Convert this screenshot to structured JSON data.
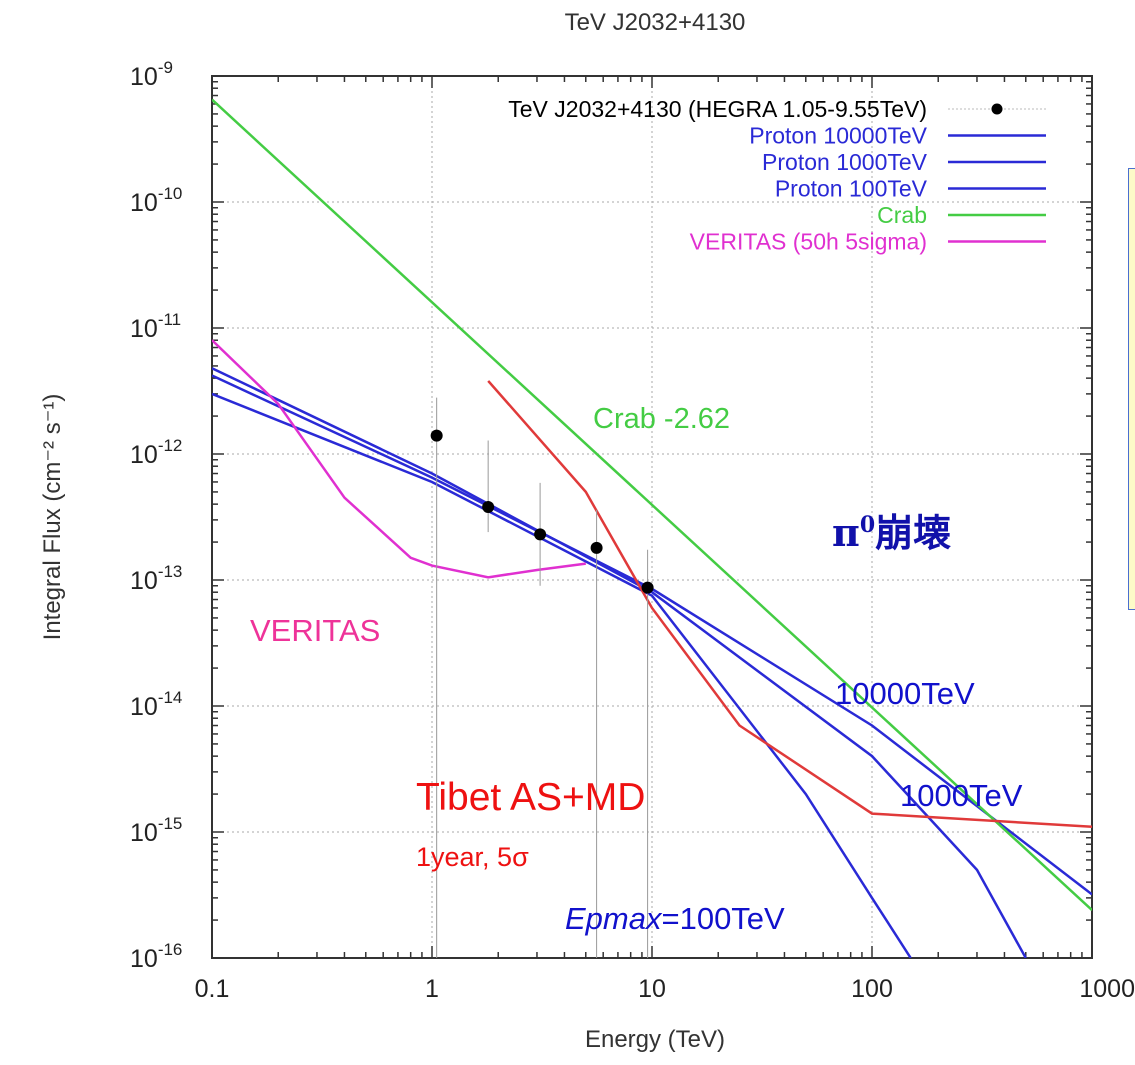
{
  "chart_data": {
    "type": "line",
    "title": "TeV J2032+4130",
    "xlabel": "Energy (TeV)",
    "ylabel": "Integral Flux (cm⁻² s⁻¹)",
    "x_scale": "log",
    "y_scale": "log",
    "xlim": [
      0.1,
      1000
    ],
    "ylim": [
      1e-16,
      1e-09
    ],
    "grid": true,
    "legend_placement": "top-right",
    "x_ticks": [
      "0.1",
      "1",
      "10",
      "100",
      "1000"
    ],
    "y_ticks": [
      {
        "base": "10",
        "exp": "-9"
      },
      {
        "base": "10",
        "exp": "-10"
      },
      {
        "base": "10",
        "exp": "-11"
      },
      {
        "base": "10",
        "exp": "-12"
      },
      {
        "base": "10",
        "exp": "-13"
      },
      {
        "base": "10",
        "exp": "-14"
      },
      {
        "base": "10",
        "exp": "-15"
      },
      {
        "base": "10",
        "exp": "-16"
      }
    ],
    "series": [
      {
        "name": "TeV J2032+4130 (HEGRA 1.05-9.55TeV)",
        "kind": "points",
        "color": "#000000",
        "x": [
          1.05,
          1.8,
          3.1,
          5.6,
          9.55
        ],
        "y": [
          1.4e-12,
          3.8e-13,
          2.3e-13,
          1.8e-13,
          8.7e-14
        ],
        "yerr_low": [
          1.4e-12,
          1.4e-13,
          1.4e-13,
          1.8e-13,
          8.7e-14
        ],
        "yerr_high": [
          1.4e-12,
          9e-13,
          3.6e-13,
          1.8e-13,
          8.7e-14
        ]
      },
      {
        "name": "Proton 10000TeV",
        "kind": "line",
        "color": "#2a2ad6",
        "x": [
          0.1,
          1,
          10,
          100,
          1000
        ],
        "y": [
          4.2e-12,
          6.5e-13,
          8.5e-14,
          7e-15,
          3.2e-16
        ]
      },
      {
        "name": "Proton 1000TeV",
        "kind": "line",
        "color": "#2a2ad6",
        "x": [
          0.1,
          1,
          10,
          100,
          300,
          500
        ],
        "y": [
          4.8e-12,
          7e-13,
          8e-14,
          4e-15,
          5e-16,
          1e-16
        ]
      },
      {
        "name": "Proton 100TeV",
        "kind": "line",
        "color": "#2a2ad6",
        "x": [
          0.1,
          1,
          10,
          50,
          100,
          150
        ],
        "y": [
          3e-12,
          6e-13,
          7.5e-14,
          2e-15,
          3e-16,
          1e-16
        ]
      },
      {
        "name": "Crab",
        "kind": "line",
        "color": "#44cc44",
        "x": [
          0.1,
          1000
        ],
        "y": [
          6.5e-10,
          2.4e-16
        ]
      },
      {
        "name": "VERITAS (50h 5sigma)",
        "kind": "line",
        "color": "#e030d0",
        "x": [
          0.1,
          0.2,
          0.4,
          0.8,
          1.0,
          1.8,
          3.0,
          5.0
        ],
        "y": [
          8e-12,
          2.5e-12,
          4.5e-13,
          1.5e-13,
          1.3e-13,
          1.05e-13,
          1.2e-13,
          1.35e-13
        ]
      },
      {
        "name": "",
        "kind": "line",
        "color": "#e03a3a",
        "x": [
          1.8,
          5.0,
          10,
          25,
          100,
          1000
        ],
        "y": [
          3.8e-12,
          5e-13,
          6e-14,
          7e-15,
          1.4e-15,
          1.1e-15
        ]
      }
    ],
    "annotations": {
      "crab": {
        "text": "Crab -2.62",
        "color": "#44cc44"
      },
      "pi0_base": {
        "text": "π",
        "color": "#1111aa"
      },
      "pi0_sup": {
        "text": "0",
        "color": "#1111aa"
      },
      "pi0_rest": {
        "text": "崩壊",
        "color": "#1111aa"
      },
      "veritas": {
        "text": "VERITAS",
        "color": "#ee3399"
      },
      "e10000": {
        "text": "10000TeV",
        "color": "#1111cc"
      },
      "e1000": {
        "text": "1000TeV",
        "color": "#1111cc"
      },
      "tibet": {
        "text": "Tibet AS+MD",
        "color": "#ee1111"
      },
      "tibet_sub": {
        "text": "1year, 5σ",
        "color": "#ee1111"
      },
      "epmax_italic": {
        "text": "Epmax",
        "color": "#1111cc"
      },
      "epmax_rest": {
        "text": "=100TeV",
        "color": "#1111cc"
      }
    }
  }
}
